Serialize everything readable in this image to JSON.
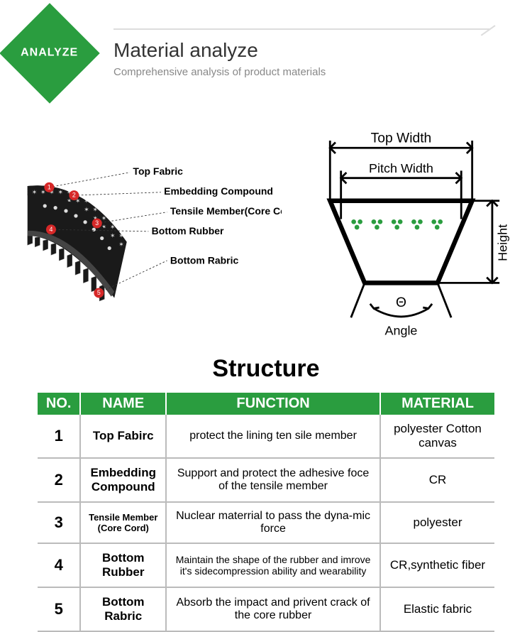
{
  "header": {
    "badge": "ANALYZE",
    "title": "Material analyze",
    "subtitle": "Comprehensive analysis of product materials",
    "accent_color": "#2a9d3f"
  },
  "diagram": {
    "labels": [
      {
        "num": "1",
        "text": "Top Fabric"
      },
      {
        "num": "2",
        "text": "Embedding Compound"
      },
      {
        "num": "3",
        "text": "Tensile Member(Core Cord)"
      },
      {
        "num": "4",
        "text": "Bottom Rubber"
      },
      {
        "num": "5",
        "text": "Bottom Rabric"
      }
    ],
    "cross_section": {
      "top_width": "Top Width",
      "pitch_width": "Pitch Width",
      "height": "Height",
      "angle_symbol": "Θ",
      "angle_label": "Angle",
      "dot_color": "#2a9d3f",
      "stroke": "#000000"
    }
  },
  "structure": {
    "title": "Structure",
    "columns": {
      "no": "NO.",
      "name": "NAME",
      "function": "FUNCTION",
      "material": "MATERIAL"
    },
    "rows": [
      {
        "no": "1",
        "name": "Top Fabirc",
        "function": "protect the lining ten sile member",
        "material": "polyester Cotton canvas"
      },
      {
        "no": "2",
        "name": "Embedding Compound",
        "function": "Support and protect the adhesive foce of the tensile member",
        "material": "CR"
      },
      {
        "no": "3",
        "name": "Tensile Member (Core Cord)",
        "name_small": true,
        "function": "Nuclear materrial to pass the dyna-mic force",
        "material": "polyester"
      },
      {
        "no": "4",
        "name": "Bottom Rubber",
        "function": "Maintain the shape of the rubber and imrove it's sidecompression ability and wearability",
        "func_small": true,
        "material": "CR,synthetic fiber"
      },
      {
        "no": "5",
        "name": "Bottom Rabric",
        "function": "Absorb the impact and privent crack of the core rubber",
        "material": "Elastic fabric"
      }
    ]
  },
  "colors": {
    "green": "#2a9d3f",
    "red": "#d62828",
    "border": "#bbbbbb",
    "black": "#1a1a1a"
  }
}
